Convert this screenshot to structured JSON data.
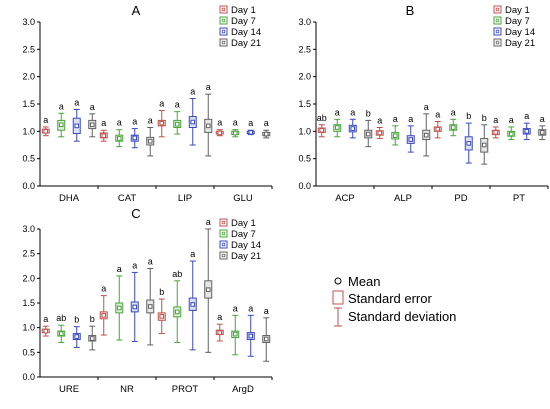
{
  "chart_data": {
    "type": "box",
    "legend": {
      "series": [
        {
          "name": "Day 1",
          "color": "#c0504d"
        },
        {
          "name": "Day 7",
          "color": "#4aa33b"
        },
        {
          "name": "Day 14",
          "color": "#3a48c0"
        },
        {
          "name": "Day 21",
          "color": "#606060"
        }
      ],
      "mean_label": "Mean",
      "se_label": "Standard error",
      "sd_label": "Standard deviation"
    },
    "panels": [
      {
        "title": "A",
        "ylim": [
          0,
          3.0
        ],
        "yticks": [
          "0.0",
          "0.5",
          "1.0",
          "1.5",
          "2.0",
          "2.5",
          "3.0"
        ],
        "categories": [
          "DHA",
          "CAT",
          "LIP",
          "GLU"
        ],
        "groups": [
          {
            "values": [
              {
                "mean": 1.0,
                "se_lo": 0.97,
                "se_hi": 1.04,
                "sd_lo": 0.92,
                "sd_hi": 1.08,
                "sig": "a"
              },
              {
                "mean": 1.12,
                "se_lo": 1.02,
                "se_hi": 1.2,
                "sd_lo": 0.9,
                "sd_hi": 1.33,
                "sig": "a"
              },
              {
                "mean": 1.1,
                "se_lo": 0.96,
                "se_hi": 1.24,
                "sd_lo": 0.82,
                "sd_hi": 1.4,
                "sig": "a"
              },
              {
                "mean": 1.12,
                "se_lo": 1.05,
                "se_hi": 1.2,
                "sd_lo": 0.9,
                "sd_hi": 1.32,
                "sig": "a"
              }
            ]
          },
          {
            "values": [
              {
                "mean": 0.92,
                "se_lo": 0.88,
                "se_hi": 0.97,
                "sd_lo": 0.82,
                "sd_hi": 1.02,
                "sig": "a"
              },
              {
                "mean": 0.87,
                "se_lo": 0.82,
                "se_hi": 0.93,
                "sd_lo": 0.72,
                "sd_hi": 1.03,
                "sig": "a"
              },
              {
                "mean": 0.88,
                "se_lo": 0.82,
                "se_hi": 0.93,
                "sd_lo": 0.7,
                "sd_hi": 1.05,
                "sig": "a"
              },
              {
                "mean": 0.82,
                "se_lo": 0.75,
                "se_hi": 0.89,
                "sd_lo": 0.55,
                "sd_hi": 1.07,
                "sig": "a"
              }
            ]
          },
          {
            "values": [
              {
                "mean": 1.15,
                "se_lo": 1.1,
                "se_hi": 1.2,
                "sd_lo": 0.9,
                "sd_hi": 1.38,
                "sig": "a"
              },
              {
                "mean": 1.13,
                "se_lo": 1.07,
                "se_hi": 1.2,
                "sd_lo": 0.95,
                "sd_hi": 1.36,
                "sig": "a"
              },
              {
                "mean": 1.17,
                "se_lo": 1.07,
                "se_hi": 1.27,
                "sd_lo": 0.75,
                "sd_hi": 1.6,
                "sig": "a"
              },
              {
                "mean": 1.1,
                "se_lo": 0.98,
                "se_hi": 1.22,
                "sd_lo": 0.55,
                "sd_hi": 1.68,
                "sig": "a"
              }
            ]
          },
          {
            "values": [
              {
                "mean": 0.97,
                "se_lo": 0.95,
                "se_hi": 1.0,
                "sd_lo": 0.92,
                "sd_hi": 1.03,
                "sig": "a"
              },
              {
                "mean": 0.97,
                "se_lo": 0.94,
                "se_hi": 1.0,
                "sd_lo": 0.9,
                "sd_hi": 1.03,
                "sig": "a"
              },
              {
                "mean": 0.98,
                "se_lo": 0.96,
                "se_hi": 1.0,
                "sd_lo": 0.94,
                "sd_hi": 1.02,
                "sig": "a"
              },
              {
                "mean": 0.95,
                "se_lo": 0.92,
                "se_hi": 0.98,
                "sd_lo": 0.88,
                "sd_hi": 1.02,
                "sig": "a"
              }
            ]
          }
        ]
      },
      {
        "title": "B",
        "ylim": [
          0,
          3.0
        ],
        "yticks": [
          "0.0",
          "0.5",
          "1.0",
          "1.5",
          "2.0",
          "2.5",
          "3.0"
        ],
        "categories": [
          "ACP",
          "ALP",
          "PD",
          "PT"
        ],
        "groups": [
          {
            "values": [
              {
                "mean": 1.02,
                "se_lo": 0.98,
                "se_hi": 1.06,
                "sd_lo": 0.9,
                "sd_hi": 1.12,
                "sig": "ab"
              },
              {
                "mean": 1.07,
                "se_lo": 1.0,
                "se_hi": 1.12,
                "sd_lo": 0.9,
                "sd_hi": 1.22,
                "sig": "a"
              },
              {
                "mean": 1.05,
                "se_lo": 0.99,
                "se_hi": 1.11,
                "sd_lo": 0.88,
                "sd_hi": 1.22,
                "sig": "a"
              },
              {
                "mean": 0.95,
                "se_lo": 0.88,
                "se_hi": 1.02,
                "sd_lo": 0.72,
                "sd_hi": 1.2,
                "sig": "b"
              }
            ]
          },
          {
            "values": [
              {
                "mean": 0.97,
                "se_lo": 0.93,
                "se_hi": 1.01,
                "sd_lo": 0.87,
                "sd_hi": 1.07,
                "sig": "a"
              },
              {
                "mean": 0.92,
                "se_lo": 0.86,
                "se_hi": 0.98,
                "sd_lo": 0.75,
                "sd_hi": 1.1,
                "sig": "a"
              },
              {
                "mean": 0.85,
                "se_lo": 0.78,
                "se_hi": 0.92,
                "sd_lo": 0.62,
                "sd_hi": 1.1,
                "sig": "a"
              },
              {
                "mean": 0.93,
                "se_lo": 0.85,
                "se_hi": 1.02,
                "sd_lo": 0.55,
                "sd_hi": 1.32,
                "sig": "a"
              }
            ]
          },
          {
            "values": [
              {
                "mean": 1.04,
                "se_lo": 1.0,
                "se_hi": 1.08,
                "sd_lo": 0.88,
                "sd_hi": 1.18,
                "sig": "a"
              },
              {
                "mean": 1.07,
                "se_lo": 1.02,
                "se_hi": 1.12,
                "sd_lo": 0.92,
                "sd_hi": 1.22,
                "sig": "a"
              },
              {
                "mean": 0.78,
                "se_lo": 0.66,
                "se_hi": 0.9,
                "sd_lo": 0.42,
                "sd_hi": 1.15,
                "sig": "b"
              },
              {
                "mean": 0.75,
                "se_lo": 0.62,
                "se_hi": 0.87,
                "sd_lo": 0.4,
                "sd_hi": 1.12,
                "sig": "b"
              }
            ]
          },
          {
            "values": [
              {
                "mean": 0.98,
                "se_lo": 0.94,
                "se_hi": 1.02,
                "sd_lo": 0.88,
                "sd_hi": 1.08,
                "sig": "a"
              },
              {
                "mean": 0.95,
                "se_lo": 0.91,
                "se_hi": 1.0,
                "sd_lo": 0.85,
                "sd_hi": 1.08,
                "sig": "a"
              },
              {
                "mean": 1.0,
                "se_lo": 0.95,
                "se_hi": 1.05,
                "sd_lo": 0.85,
                "sd_hi": 1.15,
                "sig": "a"
              },
              {
                "mean": 0.98,
                "se_lo": 0.93,
                "se_hi": 1.03,
                "sd_lo": 0.85,
                "sd_hi": 1.1,
                "sig": "a"
              }
            ]
          }
        ]
      },
      {
        "title": "C",
        "ylim": [
          0,
          3.0
        ],
        "yticks": [
          "0.0",
          "0.5",
          "1.0",
          "1.5",
          "2.0",
          "2.5",
          "3.0"
        ],
        "categories": [
          "URE",
          "NR",
          "PROT",
          "ArgD"
        ],
        "groups": [
          {
            "values": [
              {
                "mean": 0.93,
                "se_lo": 0.9,
                "se_hi": 0.97,
                "sd_lo": 0.83,
                "sd_hi": 1.03,
                "sig": "a"
              },
              {
                "mean": 0.88,
                "se_lo": 0.83,
                "se_hi": 0.93,
                "sd_lo": 0.7,
                "sd_hi": 1.05,
                "sig": "ab"
              },
              {
                "mean": 0.82,
                "se_lo": 0.76,
                "se_hi": 0.88,
                "sd_lo": 0.6,
                "sd_hi": 1.02,
                "sig": "b"
              },
              {
                "mean": 0.78,
                "se_lo": 0.73,
                "se_hi": 0.84,
                "sd_lo": 0.55,
                "sd_hi": 1.03,
                "sig": "b"
              }
            ]
          },
          {
            "values": [
              {
                "mean": 1.25,
                "se_lo": 1.18,
                "se_hi": 1.32,
                "sd_lo": 0.85,
                "sd_hi": 1.65,
                "sig": "a"
              },
              {
                "mean": 1.4,
                "se_lo": 1.3,
                "se_hi": 1.5,
                "sd_lo": 0.75,
                "sd_hi": 2.05,
                "sig": "a"
              },
              {
                "mean": 1.42,
                "se_lo": 1.32,
                "se_hi": 1.52,
                "sd_lo": 0.72,
                "sd_hi": 2.12,
                "sig": "a"
              },
              {
                "mean": 1.43,
                "se_lo": 1.3,
                "se_hi": 1.56,
                "sd_lo": 0.65,
                "sd_hi": 2.2,
                "sig": "a"
              }
            ]
          },
          {
            "values": [
              {
                "mean": 1.23,
                "se_lo": 1.15,
                "se_hi": 1.3,
                "sd_lo": 0.88,
                "sd_hi": 1.58,
                "sig": "b"
              },
              {
                "mean": 1.32,
                "se_lo": 1.22,
                "se_hi": 1.42,
                "sd_lo": 0.7,
                "sd_hi": 1.95,
                "sig": "ab"
              },
              {
                "mean": 1.47,
                "se_lo": 1.35,
                "se_hi": 1.6,
                "sd_lo": 0.55,
                "sd_hi": 2.35,
                "sig": "a"
              },
              {
                "mean": 1.77,
                "se_lo": 1.6,
                "se_hi": 1.95,
                "sd_lo": 0.5,
                "sd_hi": 3.0,
                "sig": "a"
              }
            ]
          },
          {
            "values": [
              {
                "mean": 0.9,
                "se_lo": 0.86,
                "se_hi": 0.95,
                "sd_lo": 0.73,
                "sd_hi": 1.07,
                "sig": "a"
              },
              {
                "mean": 0.87,
                "se_lo": 0.8,
                "se_hi": 0.93,
                "sd_lo": 0.45,
                "sd_hi": 1.25,
                "sig": "a"
              },
              {
                "mean": 0.83,
                "se_lo": 0.76,
                "se_hi": 0.9,
                "sd_lo": 0.42,
                "sd_hi": 1.25,
                "sig": "a"
              },
              {
                "mean": 0.77,
                "se_lo": 0.7,
                "se_hi": 0.84,
                "sd_lo": 0.32,
                "sd_hi": 1.2,
                "sig": "a"
              }
            ]
          }
        ]
      }
    ]
  }
}
